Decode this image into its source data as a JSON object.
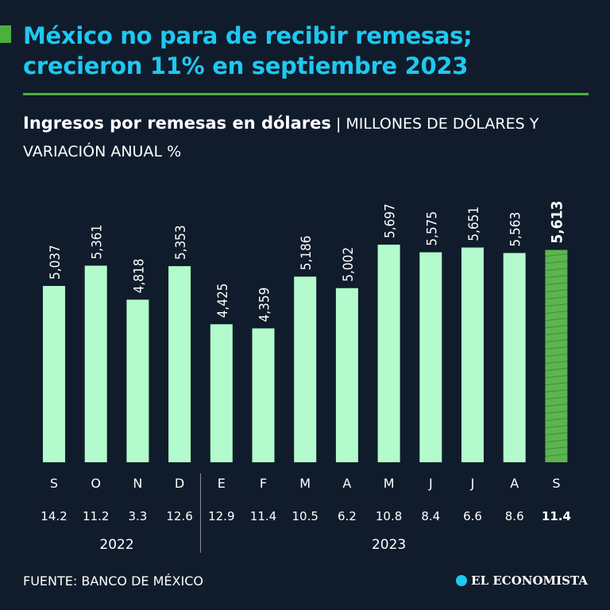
{
  "header": {
    "title_line1": "México no para de recibir remesas;",
    "title_line2": "crecieron 11% en septiembre 2023",
    "subtitle_bold": "Ingresos por remesas en dólares",
    "subtitle_sep": " | ",
    "subtitle_unit": "MILLONES DE DÓLARES Y VARIACIÓN ANUAL %"
  },
  "footer": {
    "source": "FUENTE: BANCO DE MÉXICO",
    "logo": "EL ECONOMISTA"
  },
  "colors": {
    "background": "#101c2c",
    "title": "#1ec8f0",
    "accent": "#4caf3e",
    "bar": "#b3fbcc",
    "highlight_bar": "#5cb54e"
  },
  "chart_data": {
    "type": "bar",
    "title": "Ingresos por remesas en dólares",
    "ylabel": "Millones de dólares",
    "categories": [
      "S",
      "O",
      "N",
      "D",
      "E",
      "F",
      "M",
      "A",
      "M",
      "J",
      "J",
      "A",
      "S"
    ],
    "values": [
      5037,
      5361,
      4818,
      5353,
      4425,
      4359,
      5186,
      5002,
      5697,
      5575,
      5651,
      5563,
      5613
    ],
    "value_labels": [
      "5,037",
      "5,361",
      "4,818",
      "5,353",
      "4,425",
      "4,359",
      "5,186",
      "5,002",
      "5,697",
      "5,575",
      "5,651",
      "5,563",
      "5,613"
    ],
    "annual_variation": [
      "14.2",
      "11.2",
      "3.3",
      "12.6",
      "12.9",
      "11.4",
      "10.5",
      "6.2",
      "10.8",
      "8.4",
      "6.6",
      "8.6",
      "11.4"
    ],
    "years": [
      {
        "label": "2022",
        "from": 0,
        "to": 3
      },
      {
        "label": "2023",
        "from": 4,
        "to": 12
      }
    ],
    "highlight_index": 12,
    "ylim": [
      2220,
      6000
    ],
    "grid": false
  }
}
